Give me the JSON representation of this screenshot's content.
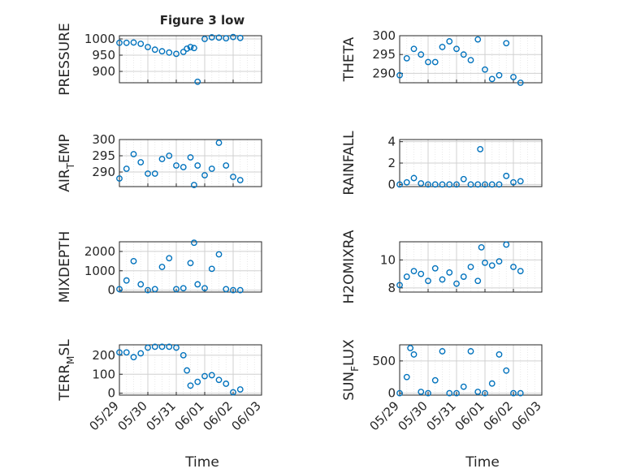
{
  "figure": {
    "title": "Figure 3 low",
    "x_dates": [
      "05/29",
      "05/30",
      "05/31",
      "06/01",
      "06/02",
      "06/03"
    ],
    "xlabel": "Time",
    "marker_color": "#0072BD"
  },
  "chart_data": [
    {
      "type": "scatter",
      "ylabel": "PRESSURE",
      "yticks": [
        900,
        950,
        1000
      ],
      "ylim": [
        865,
        1010
      ],
      "xlim": [
        "05/29",
        "06/03"
      ],
      "grid": true,
      "x": [
        "05/29 00:00",
        "05/29 06:00",
        "05/29 12:00",
        "05/29 18:00",
        "05/30 00:00",
        "05/30 06:00",
        "05/30 12:00",
        "05/30 18:00",
        "05/31 00:00",
        "05/31 06:00",
        "05/31 09:00",
        "05/31 12:00",
        "05/31 15:00",
        "05/31 18:00",
        "06/01 00:00",
        "06/01 06:00",
        "06/01 12:00",
        "06/01 18:00",
        "06/02 00:00",
        "06/02 06:00"
      ],
      "y": [
        988,
        988,
        989,
        985,
        975,
        967,
        962,
        958,
        954,
        960,
        970,
        975,
        972,
        868,
        1000,
        1005,
        1004,
        1002,
        1006,
        1003
      ]
    },
    {
      "type": "scatter",
      "ylabel": "THETA",
      "yticks": [
        290,
        295,
        300
      ],
      "ylim": [
        287.5,
        300
      ],
      "xlim": [
        "05/29",
        "06/03"
      ],
      "grid": true,
      "x": [
        "05/29 00:00",
        "05/29 06:00",
        "05/29 12:00",
        "05/29 18:00",
        "05/30 00:00",
        "05/30 06:00",
        "05/30 12:00",
        "05/30 18:00",
        "05/31 00:00",
        "05/31 06:00",
        "05/31 12:00",
        "05/31 18:00",
        "06/01 00:00",
        "06/01 06:00",
        "06/01 12:00",
        "06/01 18:00",
        "06/02 00:00",
        "06/02 06:00"
      ],
      "y": [
        289.5,
        294,
        296.5,
        295,
        293,
        293,
        297,
        298.5,
        296.5,
        295,
        293.5,
        299,
        291,
        288.5,
        289.5,
        298,
        289,
        287.5
      ]
    },
    {
      "type": "scatter",
      "ylabel": "AIR_TEMP",
      "yticks": [
        290,
        295,
        300
      ],
      "ylim": [
        285.5,
        300
      ],
      "xlim": [
        "05/29",
        "06/03"
      ],
      "grid": true,
      "x": [
        "05/29 00:00",
        "05/29 06:00",
        "05/29 12:00",
        "05/29 18:00",
        "05/30 00:00",
        "05/30 06:00",
        "05/30 12:00",
        "05/30 18:00",
        "05/31 00:00",
        "05/31 06:00",
        "05/31 12:00",
        "05/31 15:00",
        "05/31 18:00",
        "06/01 00:00",
        "06/01 06:00",
        "06/01 12:00",
        "06/01 18:00",
        "06/02 00:00",
        "06/02 06:00"
      ],
      "y": [
        288,
        291,
        295.5,
        293,
        289.5,
        289.5,
        294,
        295,
        292,
        291.5,
        294.5,
        286,
        292,
        289,
        291,
        299,
        292,
        288.5,
        287.5
      ]
    },
    {
      "type": "scatter",
      "ylabel": "RAINFALL",
      "yticks": [
        0,
        2,
        4
      ],
      "ylim": [
        -0.2,
        4.2
      ],
      "xlim": [
        "05/29",
        "06/03"
      ],
      "grid": true,
      "x": [
        "05/29 00:00",
        "05/29 06:00",
        "05/29 12:00",
        "05/29 18:00",
        "05/30 00:00",
        "05/30 06:00",
        "05/30 12:00",
        "05/30 18:00",
        "05/31 00:00",
        "05/31 06:00",
        "05/31 12:00",
        "05/31 18:00",
        "05/31 20:00",
        "06/01 00:00",
        "06/01 06:00",
        "06/01 12:00",
        "06/01 18:00",
        "06/02 00:00",
        "06/02 06:00"
      ],
      "y": [
        0,
        0.2,
        0.6,
        0.1,
        0,
        0,
        0,
        0,
        0,
        0.5,
        0,
        0,
        3.3,
        0,
        0,
        0,
        0.8,
        0.2,
        0.3
      ]
    },
    {
      "type": "scatter",
      "ylabel": "MIXDEPTH",
      "yticks": [
        0,
        1000,
        2000
      ],
      "ylim": [
        -100,
        2500
      ],
      "xlim": [
        "05/29",
        "06/03"
      ],
      "grid": true,
      "x": [
        "05/29 00:00",
        "05/29 06:00",
        "05/29 12:00",
        "05/29 18:00",
        "05/30 00:00",
        "05/30 06:00",
        "05/30 12:00",
        "05/30 18:00",
        "05/31 00:00",
        "05/31 06:00",
        "05/31 12:00",
        "05/31 15:00",
        "05/31 18:00",
        "06/01 00:00",
        "06/01 06:00",
        "06/01 12:00",
        "06/01 18:00",
        "06/02 00:00",
        "06/02 06:00"
      ],
      "y": [
        50,
        500,
        1500,
        300,
        0,
        50,
        1200,
        1650,
        50,
        100,
        1400,
        2450,
        300,
        100,
        1100,
        1850,
        50,
        0,
        0
      ]
    },
    {
      "type": "scatter",
      "ylabel": "H2OMIXRA",
      "yticks": [
        8,
        10
      ],
      "ylim": [
        7.7,
        11.3
      ],
      "xlim": [
        "05/29",
        "06/03"
      ],
      "grid": true,
      "x": [
        "05/29 00:00",
        "05/29 06:00",
        "05/29 12:00",
        "05/29 18:00",
        "05/30 00:00",
        "05/30 06:00",
        "05/30 12:00",
        "05/30 18:00",
        "05/31 00:00",
        "05/31 06:00",
        "05/31 12:00",
        "05/31 18:00",
        "05/31 21:00",
        "06/01 00:00",
        "06/01 06:00",
        "06/01 12:00",
        "06/01 18:00",
        "06/02 00:00",
        "06/02 06:00"
      ],
      "y": [
        8.2,
        8.8,
        9.2,
        9.0,
        8.5,
        9.4,
        8.6,
        9.1,
        8.3,
        8.8,
        9.5,
        8.5,
        10.9,
        9.8,
        9.6,
        9.9,
        11.1,
        9.5,
        9.2
      ]
    },
    {
      "type": "scatter",
      "ylabel": "TERR_MSL",
      "yticks": [
        0,
        100,
        200
      ],
      "ylim": [
        -10,
        255
      ],
      "xlim": [
        "05/29",
        "06/03"
      ],
      "grid": true,
      "x": [
        "05/29 00:00",
        "05/29 06:00",
        "05/29 12:00",
        "05/29 18:00",
        "05/30 00:00",
        "05/30 06:00",
        "05/30 12:00",
        "05/30 18:00",
        "05/31 00:00",
        "05/31 06:00",
        "05/31 09:00",
        "05/31 12:00",
        "05/31 18:00",
        "06/01 00:00",
        "06/01 06:00",
        "06/01 12:00",
        "06/01 18:00",
        "06/02 00:00",
        "06/02 06:00"
      ],
      "y": [
        215,
        215,
        190,
        210,
        240,
        245,
        245,
        245,
        240,
        200,
        120,
        40,
        60,
        90,
        95,
        70,
        50,
        5,
        20
      ]
    },
    {
      "type": "scatter",
      "ylabel": "SUN_FLUX",
      "yticks": [
        0,
        500
      ],
      "ylim": [
        -30,
        750
      ],
      "xlim": [
        "05/29",
        "06/03"
      ],
      "grid": true,
      "x": [
        "05/29 00:00",
        "05/29 06:00",
        "05/29 09:00",
        "05/29 12:00",
        "05/29 18:00",
        "05/30 00:00",
        "05/30 06:00",
        "05/30 12:00",
        "05/30 18:00",
        "05/31 00:00",
        "05/31 06:00",
        "05/31 12:00",
        "05/31 18:00",
        "06/01 00:00",
        "06/01 06:00",
        "06/01 12:00",
        "06/01 18:00",
        "06/02 00:00",
        "06/02 06:00"
      ],
      "y": [
        0,
        250,
        700,
        600,
        20,
        0,
        200,
        650,
        0,
        0,
        100,
        650,
        20,
        0,
        150,
        600,
        350,
        0,
        0
      ]
    }
  ]
}
